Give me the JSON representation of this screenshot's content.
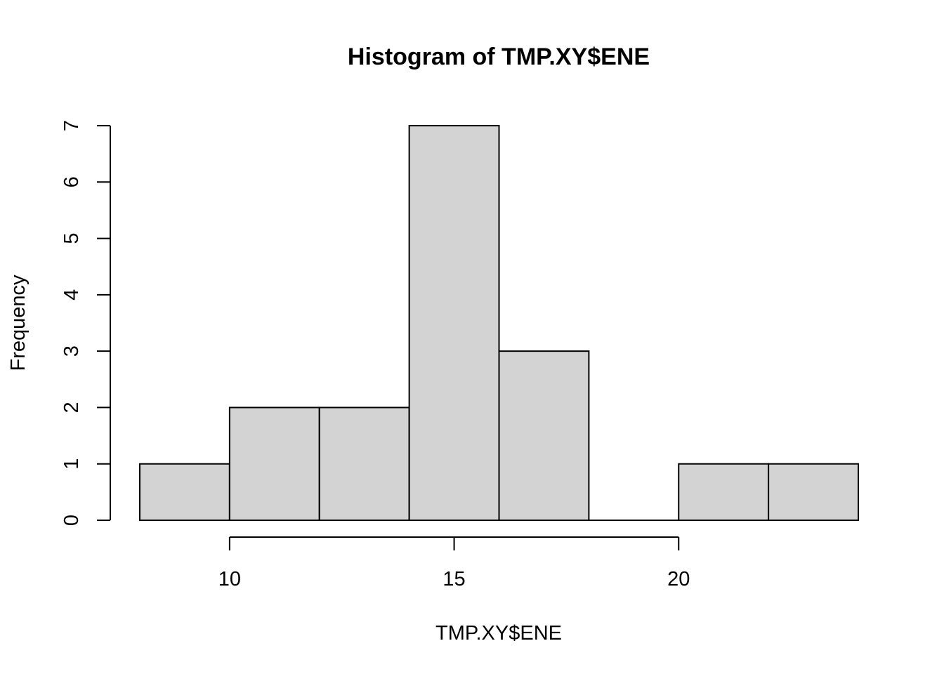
{
  "chart_data": {
    "type": "bar",
    "title": "Histogram of TMP.XY$ENE",
    "xlabel": "TMP.XY$ENE",
    "ylabel": "Frequency",
    "bins": [
      {
        "x_start": 8,
        "x_end": 10,
        "count": 1
      },
      {
        "x_start": 10,
        "x_end": 12,
        "count": 2
      },
      {
        "x_start": 12,
        "x_end": 14,
        "count": 2
      },
      {
        "x_start": 14,
        "x_end": 16,
        "count": 7
      },
      {
        "x_start": 16,
        "x_end": 18,
        "count": 3
      },
      {
        "x_start": 18,
        "x_end": 20,
        "count": 0
      },
      {
        "x_start": 20,
        "x_end": 22,
        "count": 1
      },
      {
        "x_start": 22,
        "x_end": 24,
        "count": 1
      }
    ],
    "xlim": [
      8,
      24
    ],
    "ylim": [
      0,
      7
    ],
    "x_ticks": [
      10,
      15,
      20
    ],
    "y_ticks": [
      0,
      1,
      2,
      3,
      4,
      5,
      6,
      7
    ],
    "grid": false,
    "colors": {
      "bar_fill": "#d3d3d3",
      "bar_stroke": "#000000"
    }
  }
}
